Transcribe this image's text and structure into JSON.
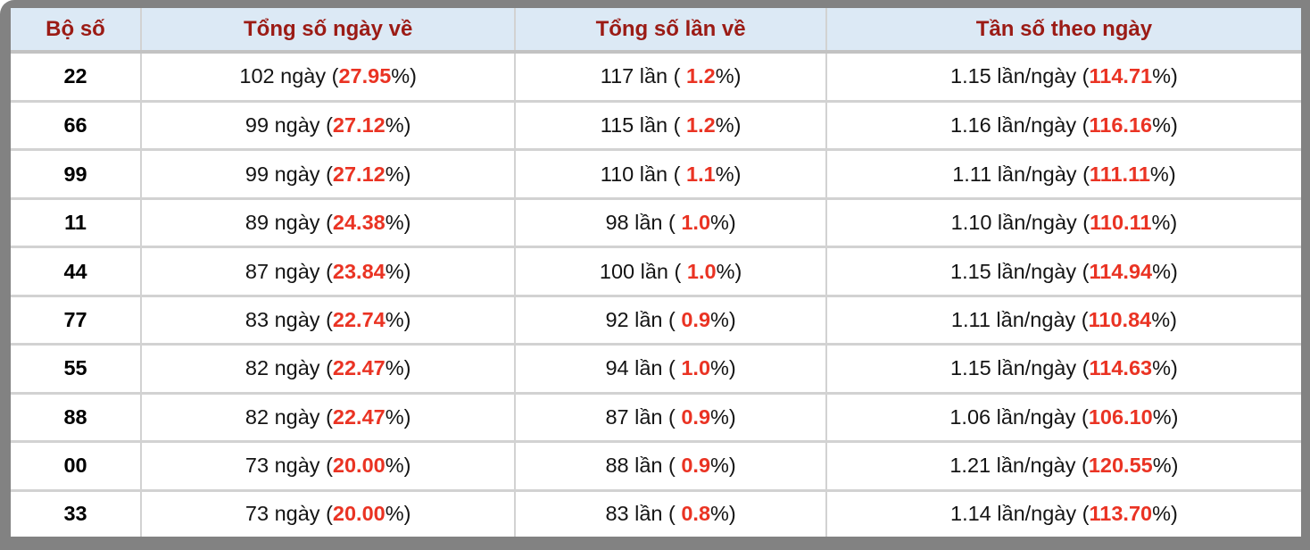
{
  "labels": {
    "percent_close": "%)"
  },
  "colors": {
    "header_bg": "#dce9f5",
    "header_text": "#9b1b15",
    "highlight_red": "#ea3323",
    "row_border": "#d2d2d2",
    "header_border": "#c2c2c2",
    "frame_gray": "#828282",
    "page_bg": "#ffffff"
  },
  "table": {
    "columns": [
      "Bộ số",
      "Tổng số ngày về",
      "Tổng số lần về",
      "Tần số theo ngày"
    ],
    "rows": [
      {
        "pair": "22",
        "days_prefix": "102 ngày (",
        "days_pct": "27.95",
        "times_prefix": "117 lần ( ",
        "times_pct": "1.2",
        "freq_prefix": "1.15 lần/ngày (",
        "freq_pct": "114.71"
      },
      {
        "pair": "66",
        "days_prefix": "99 ngày (",
        "days_pct": "27.12",
        "times_prefix": "115 lần ( ",
        "times_pct": "1.2",
        "freq_prefix": "1.16 lần/ngày (",
        "freq_pct": "116.16"
      },
      {
        "pair": "99",
        "days_prefix": "99 ngày (",
        "days_pct": "27.12",
        "times_prefix": "110 lần ( ",
        "times_pct": "1.1",
        "freq_prefix": "1.11 lần/ngày (",
        "freq_pct": "111.11"
      },
      {
        "pair": "11",
        "days_prefix": "89 ngày (",
        "days_pct": "24.38",
        "times_prefix": "98 lần ( ",
        "times_pct": "1.0",
        "freq_prefix": "1.10 lần/ngày (",
        "freq_pct": "110.11"
      },
      {
        "pair": "44",
        "days_prefix": "87 ngày (",
        "days_pct": "23.84",
        "times_prefix": "100 lần ( ",
        "times_pct": "1.0",
        "freq_prefix": "1.15 lần/ngày (",
        "freq_pct": "114.94"
      },
      {
        "pair": "77",
        "days_prefix": "83 ngày (",
        "days_pct": "22.74",
        "times_prefix": "92 lần ( ",
        "times_pct": "0.9",
        "freq_prefix": "1.11 lần/ngày (",
        "freq_pct": "110.84"
      },
      {
        "pair": "55",
        "days_prefix": "82 ngày (",
        "days_pct": "22.47",
        "times_prefix": "94 lần ( ",
        "times_pct": "1.0",
        "freq_prefix": "1.15 lần/ngày (",
        "freq_pct": "114.63"
      },
      {
        "pair": "88",
        "days_prefix": "82 ngày (",
        "days_pct": "22.47",
        "times_prefix": "87 lần ( ",
        "times_pct": "0.9",
        "freq_prefix": "1.06 lần/ngày (",
        "freq_pct": "106.10"
      },
      {
        "pair": "00",
        "days_prefix": "73 ngày (",
        "days_pct": "20.00",
        "times_prefix": "88 lần ( ",
        "times_pct": "0.9",
        "freq_prefix": "1.21 lần/ngày (",
        "freq_pct": "120.55"
      },
      {
        "pair": "33",
        "days_prefix": "73 ngày (",
        "days_pct": "20.00",
        "times_prefix": "83 lần ( ",
        "times_pct": "0.8",
        "freq_prefix": "1.14 lần/ngày (",
        "freq_pct": "113.70"
      }
    ]
  }
}
